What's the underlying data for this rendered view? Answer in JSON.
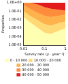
{
  "chart_data": {
    "type": "contour",
    "x_label": "Survey rate (y · year⁻¹)",
    "y_label": "Proportion",
    "x": [
      0.01,
      0.02,
      0.05,
      0.1,
      0.2,
      0.5,
      1
    ],
    "series": [
      {
        "name": "0 - 10 000",
        "color": "#ffffb2",
        "values": [
          1e-05,
          1e-05,
          1e-05,
          1e-05,
          1e-05,
          1e-05,
          1e-05
        ]
      },
      {
        "name": "10 000 - 20 000",
        "color": "#fed976",
        "values": [
          0.02,
          0.005,
          0.001,
          0.0003,
          0.0002,
          0.0005,
          0.001
        ]
      },
      {
        "name": "20 000 - 30 000",
        "color": "#feb24c",
        "values": [
          0.1,
          0.03,
          0.008,
          0.003,
          0.002,
          0.004,
          0.006
        ]
      },
      {
        "name": "30 000 - 40 000",
        "color": "#fd8d3c",
        "values": [
          0.5,
          0.2,
          0.06,
          0.03,
          0.02,
          0.03,
          0.04
        ]
      },
      {
        "name": "40 000 - 50 000",
        "color": "#e31a1c",
        "values": [
          1,
          1,
          0.6,
          0.3,
          0.2,
          0.15,
          0.12
        ]
      }
    ],
    "log": true,
    "xlim": [
      0.01,
      1
    ],
    "xticks": [
      0.01,
      0.1,
      1
    ],
    "ylim": [
      1e-05,
      1
    ],
    "yticks": [
      {
        "value": 1e-05,
        "label": "1.0E-05"
      },
      {
        "value": 0.0001,
        "label": "1.0E-04"
      },
      {
        "value": 0.001,
        "label": "1.0E-03"
      },
      {
        "value": 0.01,
        "label": "1.0E-02"
      },
      {
        "value": 0.1,
        "label": "1.0E-01"
      },
      {
        "value": 1,
        "label": "1.0E+00"
      }
    ],
    "grid": false,
    "legend": "bottom"
  }
}
